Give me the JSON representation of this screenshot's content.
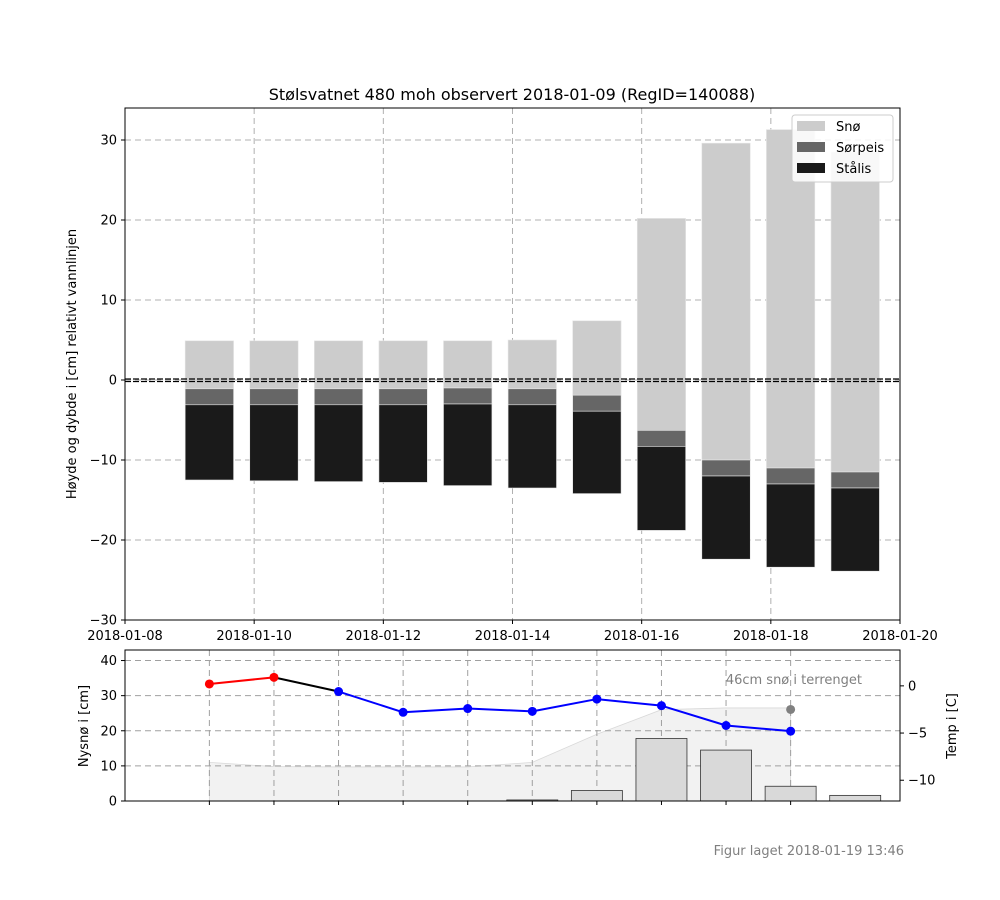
{
  "footer": "Figur laget 2018-01-19 13:46",
  "chart_data": [
    {
      "type": "bar",
      "stacked": true,
      "title": "Stølsvatnet 480 moh observert 2018-01-09 (RegID=140088)",
      "ylabel": "Høyde og dybde i [cm] relativt vannlinjen",
      "xlim": [
        "2018-01-08",
        "2018-01-20"
      ],
      "ylim": [
        -30,
        34
      ],
      "xticks": [
        "2018-01-08",
        "2018-01-10",
        "2018-01-12",
        "2018-01-14",
        "2018-01-16",
        "2018-01-18",
        "2018-01-20"
      ],
      "yticks": [
        -30,
        -20,
        -10,
        0,
        10,
        20,
        30
      ],
      "grid": true,
      "legend_position": "top-right",
      "waterline": 0,
      "series_meta": [
        {
          "name": "Snø",
          "color": "#cccccc"
        },
        {
          "name": "Sørpeis",
          "color": "#666666"
        },
        {
          "name": "Stålis",
          "color": "#1a1a1a"
        }
      ],
      "columns": [
        {
          "date": "2018-01-09",
          "snow_top": 4.9,
          "snow_bottom": -1.1,
          "slush_bottom": -3.1,
          "ice_bottom": -12.5
        },
        {
          "date": "2018-01-10",
          "snow_top": 4.9,
          "snow_bottom": -1.1,
          "slush_bottom": -3.1,
          "ice_bottom": -12.6
        },
        {
          "date": "2018-01-11",
          "snow_top": 4.9,
          "snow_bottom": -1.1,
          "slush_bottom": -3.1,
          "ice_bottom": -12.7
        },
        {
          "date": "2018-01-12",
          "snow_top": 4.9,
          "snow_bottom": -1.1,
          "slush_bottom": -3.1,
          "ice_bottom": -12.8
        },
        {
          "date": "2018-01-13",
          "snow_top": 4.9,
          "snow_bottom": -1.0,
          "slush_bottom": -3.0,
          "ice_bottom": -13.2
        },
        {
          "date": "2018-01-14",
          "snow_top": 5.0,
          "snow_bottom": -1.1,
          "slush_bottom": -3.1,
          "ice_bottom": -13.5
        },
        {
          "date": "2018-01-15",
          "snow_top": 7.4,
          "snow_bottom": -1.9,
          "slush_bottom": -3.9,
          "ice_bottom": -14.2
        },
        {
          "date": "2018-01-16",
          "snow_top": 20.2,
          "snow_bottom": -6.3,
          "slush_bottom": -8.3,
          "ice_bottom": -18.8
        },
        {
          "date": "2018-01-17",
          "snow_top": 29.6,
          "snow_bottom": -10.0,
          "slush_bottom": -12.0,
          "ice_bottom": -22.4
        },
        {
          "date": "2018-01-18",
          "snow_top": 31.3,
          "snow_bottom": -11.0,
          "slush_bottom": -13.0,
          "ice_bottom": -23.4
        },
        {
          "date": "2018-01-19",
          "snow_top": 28.5,
          "snow_bottom": -11.5,
          "slush_bottom": -13.5,
          "ice_bottom": -23.9
        }
      ]
    },
    {
      "type": "bar+line",
      "ylabel": "Nysnø i [cm]",
      "y2label": "Temp i [C]",
      "ylim": [
        0,
        43
      ],
      "yticks": [
        0,
        10,
        20,
        30,
        40
      ],
      "y2lim": [
        -12.2,
        3.8
      ],
      "y2ticks": [
        -10,
        -5,
        0
      ],
      "grid": true,
      "annotation": "46cm snø i terrenget",
      "annotation_point": {
        "date": "2018-01-18",
        "temp": -2.5,
        "color": "#808080"
      },
      "new_snow": [
        {
          "date": "2018-01-09",
          "value": 0
        },
        {
          "date": "2018-01-10",
          "value": 0
        },
        {
          "date": "2018-01-11",
          "value": 0
        },
        {
          "date": "2018-01-12",
          "value": 0
        },
        {
          "date": "2018-01-13",
          "value": 0.3
        },
        {
          "date": "2018-01-14",
          "value": 3
        },
        {
          "date": "2018-01-15",
          "value": 17.8
        },
        {
          "date": "2018-01-16",
          "value": 14.5
        },
        {
          "date": "2018-01-17",
          "value": 4.2
        },
        {
          "date": "2018-01-18",
          "value": 1.6
        }
      ],
      "snow_depth": [
        {
          "date": "2018-01-09",
          "value": 11
        },
        {
          "date": "2018-01-10",
          "value": 9.8
        },
        {
          "date": "2018-01-11",
          "value": 9.7
        },
        {
          "date": "2018-01-12",
          "value": 9.7
        },
        {
          "date": "2018-01-13",
          "value": 9.7
        },
        {
          "date": "2018-01-14",
          "value": 11
        },
        {
          "date": "2018-01-15",
          "value": 19
        },
        {
          "date": "2018-01-16",
          "value": 26
        },
        {
          "date": "2018-01-17",
          "value": 26.5
        },
        {
          "date": "2018-01-18",
          "value": 26.5
        }
      ],
      "temperature": [
        {
          "date": "2018-01-09",
          "value": 0.2,
          "color": "#ff0000"
        },
        {
          "date": "2018-01-10",
          "value": 0.9,
          "color": "#ff0000"
        },
        {
          "date": "2018-01-11",
          "value": -0.6,
          "color": "#0000ff"
        },
        {
          "date": "2018-01-12",
          "value": -2.8,
          "color": "#0000ff"
        },
        {
          "date": "2018-01-13",
          "value": -2.4,
          "color": "#0000ff"
        },
        {
          "date": "2018-01-14",
          "value": -2.7,
          "color": "#0000ff"
        },
        {
          "date": "2018-01-15",
          "value": -1.4,
          "color": "#0000ff"
        },
        {
          "date": "2018-01-16",
          "value": -2.1,
          "color": "#0000ff"
        },
        {
          "date": "2018-01-17",
          "value": -4.2,
          "color": "#0000ff"
        },
        {
          "date": "2018-01-18",
          "value": -4.8,
          "color": "#0000ff"
        }
      ],
      "segment_colors": [
        "#ff0000",
        "#000000",
        "#0000ff",
        "#0000ff",
        "#0000ff",
        "#0000ff",
        "#0000ff",
        "#0000ff",
        "#0000ff"
      ]
    }
  ]
}
